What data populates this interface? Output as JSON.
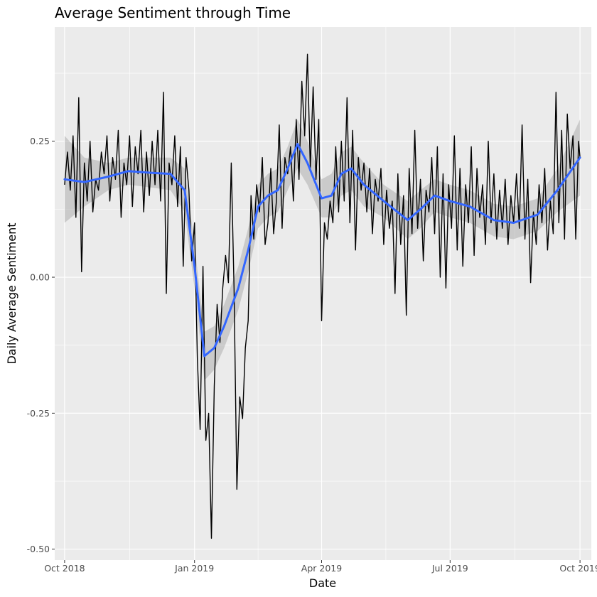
{
  "chart_data": {
    "type": "line",
    "title": "Average Sentiment through Time",
    "xlabel": "Date",
    "ylabel": "Daily Average Sentiment",
    "xlim": [
      "2018-09-24",
      "2019-10-09"
    ],
    "ylim": [
      -0.52,
      0.46
    ],
    "x_ticks": [
      "2018-10-01",
      "2019-01-01",
      "2019-04-01",
      "2019-07-01",
      "2019-10-01"
    ],
    "x_tick_labels": [
      "Oct 2018",
      "Jan 2019",
      "Apr 2019",
      "Jul 2019",
      "Oct 2019"
    ],
    "y_ticks": [
      -0.5,
      -0.25,
      0.0,
      0.25
    ],
    "y_tick_labels": [
      "-0.50",
      "-0.25",
      "0.00",
      "0.25"
    ],
    "grid": true,
    "colors": {
      "panel": "#EBEBEB",
      "grid": "#FFFFFF",
      "series": "#000000",
      "smooth": "#3366FF",
      "band": "#999999"
    },
    "series": [
      {
        "style": "line",
        "x": [
          "2018-10-01",
          "2018-10-03",
          "2018-10-05",
          "2018-10-07",
          "2018-10-09",
          "2018-10-11",
          "2018-10-13",
          "2018-10-15",
          "2018-10-17",
          "2018-10-19",
          "2018-10-21",
          "2018-10-23",
          "2018-10-25",
          "2018-10-27",
          "2018-10-29",
          "2018-10-31",
          "2018-11-02",
          "2018-11-04",
          "2018-11-06",
          "2018-11-08",
          "2018-11-10",
          "2018-11-12",
          "2018-11-14",
          "2018-11-16",
          "2018-11-18",
          "2018-11-20",
          "2018-11-22",
          "2018-11-24",
          "2018-11-26",
          "2018-11-28",
          "2018-11-30",
          "2018-12-02",
          "2018-12-04",
          "2018-12-06",
          "2018-12-08",
          "2018-12-10",
          "2018-12-12",
          "2018-12-14",
          "2018-12-16",
          "2018-12-18",
          "2018-12-20",
          "2018-12-22",
          "2018-12-24",
          "2018-12-26",
          "2018-12-28",
          "2018-12-30",
          "2019-01-01",
          "2019-01-03",
          "2019-01-05",
          "2019-01-07",
          "2019-01-09",
          "2019-01-11",
          "2019-01-13",
          "2019-01-15",
          "2019-01-17",
          "2019-01-19",
          "2019-01-21",
          "2019-01-23",
          "2019-01-25",
          "2019-01-27",
          "2019-01-29",
          "2019-01-31",
          "2019-02-02",
          "2019-02-04",
          "2019-02-06",
          "2019-02-08",
          "2019-02-10",
          "2019-02-12",
          "2019-02-14",
          "2019-02-16",
          "2019-02-18",
          "2019-02-20",
          "2019-02-22",
          "2019-02-24",
          "2019-02-26",
          "2019-02-28",
          "2019-03-02",
          "2019-03-04",
          "2019-03-06",
          "2019-03-08",
          "2019-03-10",
          "2019-03-12",
          "2019-03-14",
          "2019-03-16",
          "2019-03-18",
          "2019-03-20",
          "2019-03-22",
          "2019-03-24",
          "2019-03-26",
          "2019-03-28",
          "2019-03-30",
          "2019-04-01",
          "2019-04-03",
          "2019-04-05",
          "2019-04-07",
          "2019-04-09",
          "2019-04-11",
          "2019-04-13",
          "2019-04-15",
          "2019-04-17",
          "2019-04-19",
          "2019-04-21",
          "2019-04-23",
          "2019-04-25",
          "2019-04-27",
          "2019-04-29",
          "2019-05-01",
          "2019-05-03",
          "2019-05-05",
          "2019-05-07",
          "2019-05-09",
          "2019-05-11",
          "2019-05-13",
          "2019-05-15",
          "2019-05-17",
          "2019-05-19",
          "2019-05-21",
          "2019-05-23",
          "2019-05-25",
          "2019-05-27",
          "2019-05-29",
          "2019-05-31",
          "2019-06-02",
          "2019-06-04",
          "2019-06-06",
          "2019-06-08",
          "2019-06-10",
          "2019-06-12",
          "2019-06-14",
          "2019-06-16",
          "2019-06-18",
          "2019-06-20",
          "2019-06-22",
          "2019-06-24",
          "2019-06-26",
          "2019-06-28",
          "2019-06-30",
          "2019-07-02",
          "2019-07-04",
          "2019-07-06",
          "2019-07-08",
          "2019-07-10",
          "2019-07-12",
          "2019-07-14",
          "2019-07-16",
          "2019-07-18",
          "2019-07-20",
          "2019-07-22",
          "2019-07-24",
          "2019-07-26",
          "2019-07-28",
          "2019-07-30",
          "2019-08-01",
          "2019-08-03",
          "2019-08-05",
          "2019-08-07",
          "2019-08-09",
          "2019-08-11",
          "2019-08-13",
          "2019-08-15",
          "2019-08-17",
          "2019-08-19",
          "2019-08-21",
          "2019-08-23",
          "2019-08-25",
          "2019-08-27",
          "2019-08-29",
          "2019-08-31",
          "2019-09-02",
          "2019-09-04",
          "2019-09-06",
          "2019-09-08",
          "2019-09-10",
          "2019-09-12",
          "2019-09-14",
          "2019-09-16",
          "2019-09-18",
          "2019-09-20",
          "2019-09-22",
          "2019-09-24",
          "2019-09-26",
          "2019-09-28",
          "2019-09-30",
          "2019-10-01"
        ],
        "values": [
          0.17,
          0.23,
          0.16,
          0.26,
          0.11,
          0.33,
          0.01,
          0.21,
          0.14,
          0.25,
          0.12,
          0.18,
          0.16,
          0.23,
          0.19,
          0.26,
          0.14,
          0.22,
          0.18,
          0.27,
          0.11,
          0.21,
          0.17,
          0.26,
          0.13,
          0.24,
          0.19,
          0.27,
          0.12,
          0.23,
          0.15,
          0.25,
          0.17,
          0.27,
          0.14,
          0.34,
          -0.03,
          0.21,
          0.17,
          0.26,
          0.13,
          0.24,
          0.02,
          0.22,
          0.16,
          0.03,
          0.1,
          -0.15,
          -0.28,
          0.02,
          -0.3,
          -0.25,
          -0.48,
          -0.2,
          -0.05,
          -0.12,
          -0.02,
          0.04,
          -0.01,
          0.21,
          -0.02,
          -0.39,
          -0.22,
          -0.26,
          -0.13,
          -0.08,
          0.15,
          0.07,
          0.17,
          0.12,
          0.22,
          0.06,
          0.1,
          0.2,
          0.08,
          0.14,
          0.28,
          0.09,
          0.22,
          0.19,
          0.24,
          0.14,
          0.29,
          0.18,
          0.36,
          0.26,
          0.41,
          0.2,
          0.35,
          0.18,
          0.29,
          -0.08,
          0.1,
          0.07,
          0.14,
          0.1,
          0.24,
          0.12,
          0.25,
          0.14,
          0.33,
          0.1,
          0.27,
          0.05,
          0.22,
          0.16,
          0.21,
          0.12,
          0.2,
          0.08,
          0.18,
          0.14,
          0.2,
          0.06,
          0.16,
          0.09,
          0.14,
          -0.03,
          0.19,
          0.06,
          0.15,
          -0.07,
          0.2,
          0.08,
          0.27,
          0.09,
          0.18,
          0.03,
          0.16,
          0.12,
          0.22,
          0.08,
          0.24,
          0.0,
          0.19,
          -0.02,
          0.17,
          0.09,
          0.26,
          0.05,
          0.2,
          0.02,
          0.17,
          0.1,
          0.24,
          0.04,
          0.2,
          0.11,
          0.17,
          0.06,
          0.25,
          0.1,
          0.19,
          0.07,
          0.16,
          0.09,
          0.18,
          0.06,
          0.15,
          0.1,
          0.19,
          0.09,
          0.28,
          0.07,
          0.18,
          -0.01,
          0.12,
          0.06,
          0.17,
          0.1,
          0.2,
          0.05,
          0.14,
          0.08,
          0.34,
          0.1,
          0.27,
          0.07,
          0.3,
          0.2,
          0.26,
          0.07,
          0.25,
          0.22
        ]
      },
      {
        "style": "smooth",
        "x": [
          "2018-10-01",
          "2018-10-15",
          "2018-11-01",
          "2018-11-15",
          "2018-12-01",
          "2018-12-15",
          "2018-12-25",
          "2019-01-01",
          "2019-01-08",
          "2019-01-15",
          "2019-01-22",
          "2019-02-01",
          "2019-02-08",
          "2019-02-15",
          "2019-02-22",
          "2019-03-01",
          "2019-03-08",
          "2019-03-15",
          "2019-03-22",
          "2019-04-01",
          "2019-04-08",
          "2019-04-15",
          "2019-04-22",
          "2019-05-01",
          "2019-05-15",
          "2019-06-01",
          "2019-06-10",
          "2019-06-20",
          "2019-07-01",
          "2019-07-15",
          "2019-08-01",
          "2019-08-15",
          "2019-09-01",
          "2019-09-15",
          "2019-10-01"
        ],
        "values": [
          0.18,
          0.175,
          0.185,
          0.195,
          0.192,
          0.19,
          0.16,
          0.02,
          -0.145,
          -0.13,
          -0.09,
          -0.02,
          0.05,
          0.13,
          0.15,
          0.16,
          0.2,
          0.245,
          0.21,
          0.145,
          0.15,
          0.19,
          0.2,
          0.17,
          0.14,
          0.105,
          0.125,
          0.15,
          0.14,
          0.13,
          0.105,
          0.1,
          0.115,
          0.16,
          0.22
        ],
        "band_lower": [
          0.1,
          0.13,
          0.16,
          0.17,
          0.165,
          0.16,
          0.12,
          -0.02,
          -0.19,
          -0.17,
          -0.13,
          -0.06,
          0.01,
          0.09,
          0.11,
          0.12,
          0.16,
          0.2,
          0.17,
          0.11,
          0.11,
          0.15,
          0.16,
          0.13,
          0.11,
          0.07,
          0.09,
          0.12,
          0.11,
          0.1,
          0.075,
          0.07,
          0.085,
          0.12,
          0.15
        ],
        "band_upper": [
          0.26,
          0.22,
          0.21,
          0.22,
          0.22,
          0.22,
          0.2,
          0.06,
          -0.1,
          -0.09,
          -0.05,
          0.02,
          0.09,
          0.17,
          0.19,
          0.2,
          0.24,
          0.29,
          0.25,
          0.18,
          0.19,
          0.23,
          0.24,
          0.21,
          0.17,
          0.14,
          0.16,
          0.18,
          0.17,
          0.16,
          0.135,
          0.13,
          0.145,
          0.2,
          0.29
        ]
      }
    ]
  }
}
